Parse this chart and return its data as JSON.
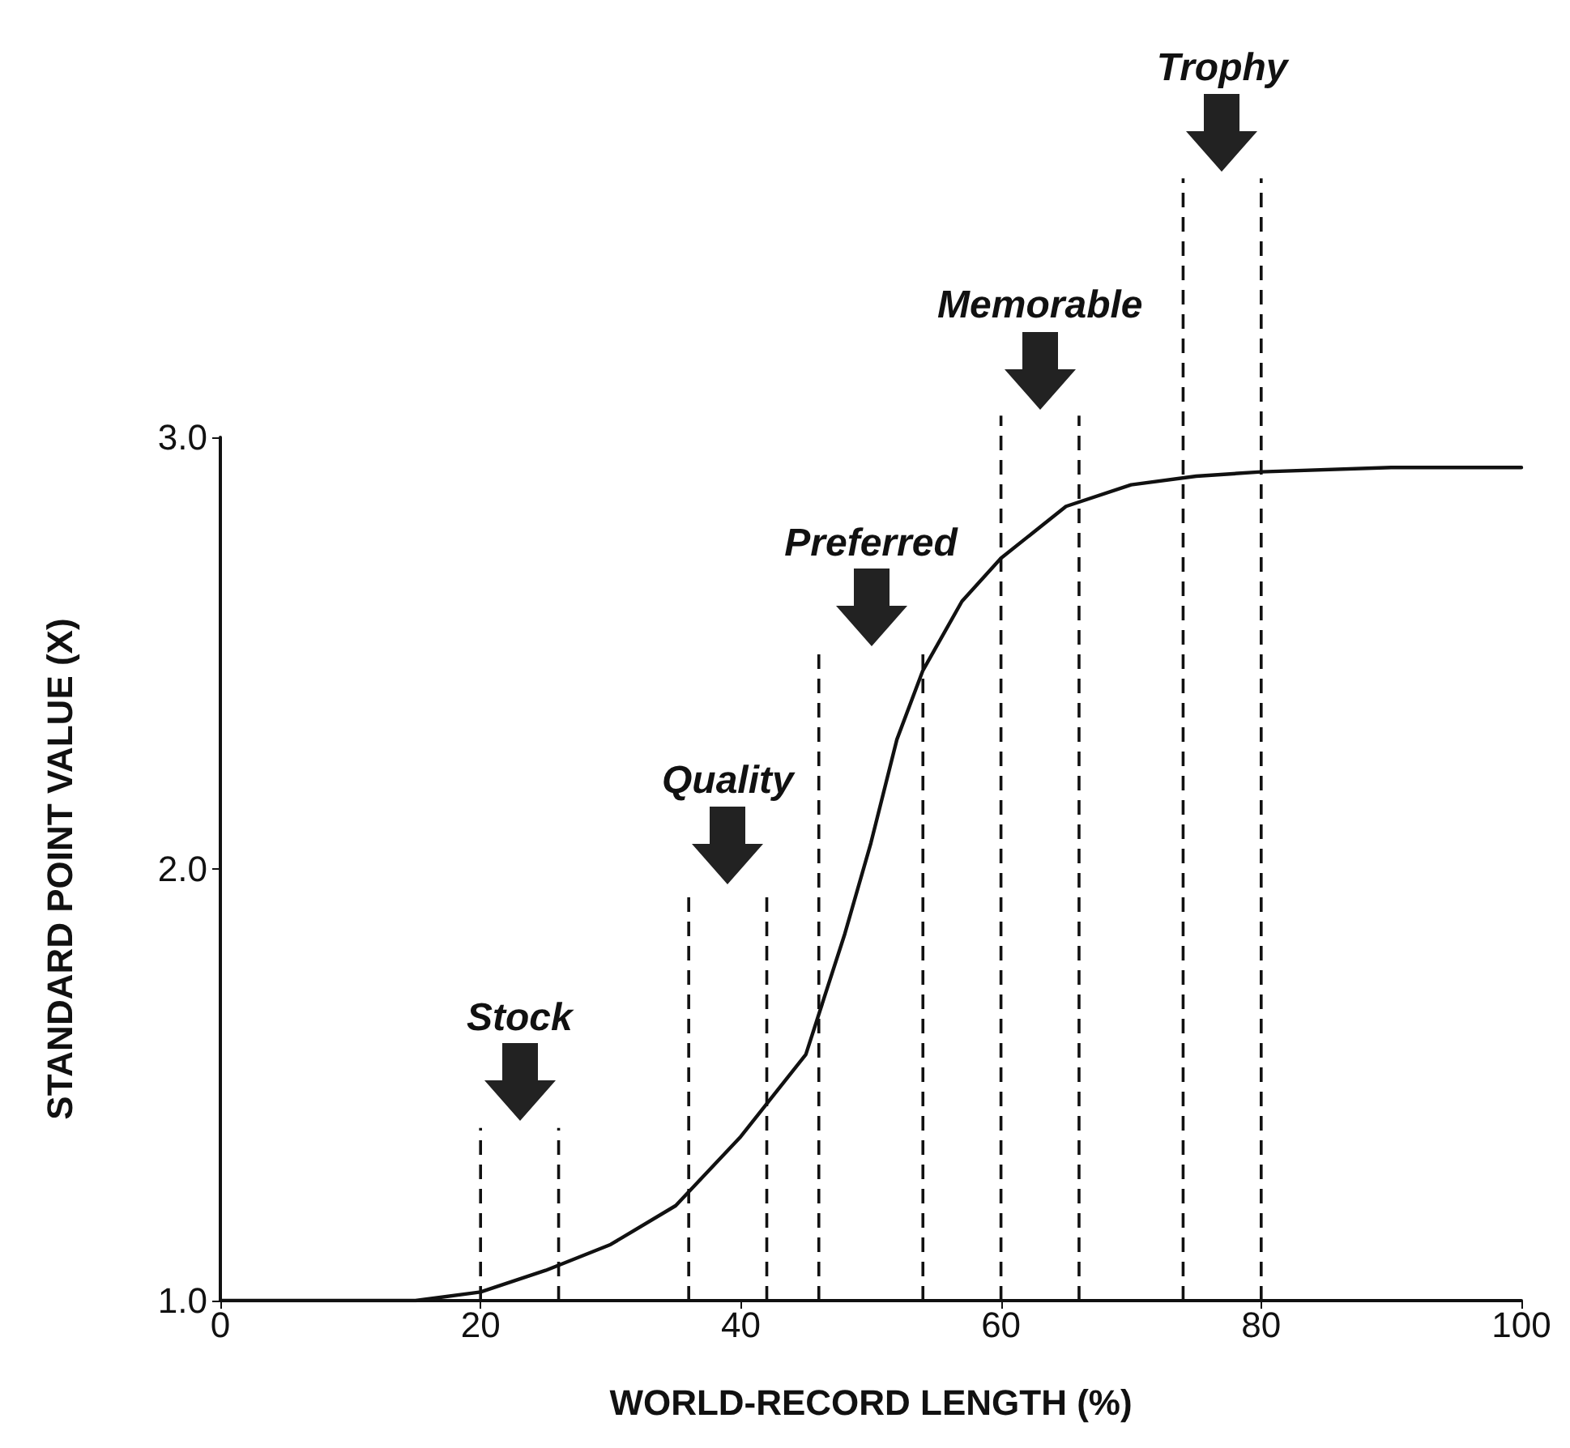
{
  "chart_data": {
    "type": "line",
    "xlabel": "WORLD-RECORD LENGTH (%)",
    "ylabel": "STANDARD POINT VALUE (X)",
    "x": [
      0,
      10,
      15,
      20,
      25,
      30,
      35,
      40,
      45,
      48,
      50,
      52,
      54,
      57,
      60,
      65,
      70,
      75,
      80,
      90,
      100
    ],
    "series": [
      {
        "color": "#111111",
        "values": [
          1.0,
          1.0,
          1.0,
          1.02,
          1.07,
          1.13,
          1.22,
          1.38,
          1.57,
          1.85,
          2.06,
          2.3,
          2.46,
          2.62,
          2.72,
          2.84,
          2.89,
          2.91,
          2.92,
          2.93,
          2.93
        ]
      }
    ],
    "xlim": [
      0,
      100
    ],
    "xticks": [
      0,
      20,
      40,
      60,
      80,
      100
    ],
    "ylim": [
      1,
      3
    ],
    "yticks": [
      {
        "value": 1,
        "label": "1.0"
      },
      {
        "value": 2,
        "label": "2.0"
      },
      {
        "value": 3,
        "label": "3.0"
      }
    ],
    "ref_lines": [
      {
        "axis": "x",
        "value": 20,
        "line_style": "dashed"
      },
      {
        "axis": "x",
        "value": 26,
        "line_style": "dashed"
      },
      {
        "axis": "x",
        "value": 36,
        "line_style": "dashed"
      },
      {
        "axis": "x",
        "value": 42,
        "line_style": "dashed"
      },
      {
        "axis": "x",
        "value": 46,
        "line_style": "dashed"
      },
      {
        "axis": "x",
        "value": 54,
        "line_style": "dashed"
      },
      {
        "axis": "x",
        "value": 60,
        "line_style": "dashed"
      },
      {
        "axis": "x",
        "value": 66,
        "line_style": "dashed"
      },
      {
        "axis": "x",
        "value": 74,
        "line_style": "dashed"
      },
      {
        "axis": "x",
        "value": 80,
        "line_style": "dashed"
      }
    ],
    "annotations": [
      "Stock",
      "Quality",
      "Preferred",
      "Memorable",
      "Trophy"
    ]
  }
}
